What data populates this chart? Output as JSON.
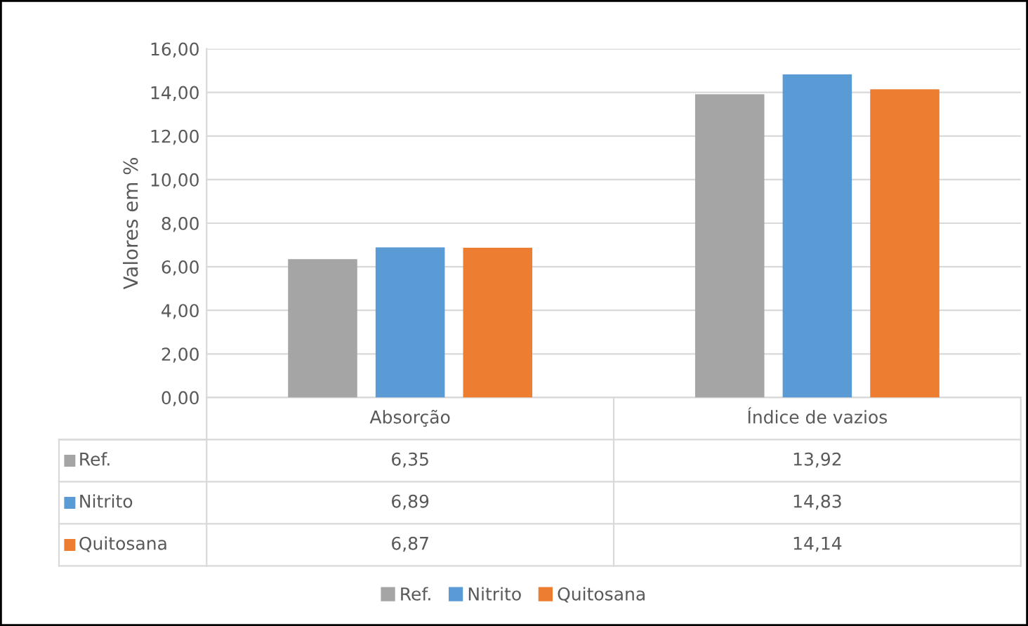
{
  "chart_data": {
    "type": "bar",
    "ylabel": "Valores em %",
    "categories": [
      "Absorção",
      "Índice de vazios"
    ],
    "series": [
      {
        "name": "Ref.",
        "color": "#a5a5a5",
        "values": [
          6.35,
          13.92
        ],
        "value_labels": [
          "6,35",
          "13,92"
        ]
      },
      {
        "name": "Nitrito",
        "color": "#5b9bd5",
        "values": [
          6.89,
          14.83
        ],
        "value_labels": [
          "6,89",
          "14,83"
        ]
      },
      {
        "name": "Quitosana",
        "color": "#ed7d31",
        "values": [
          6.87,
          14.14
        ],
        "value_labels": [
          "6,87",
          "14,14"
        ]
      }
    ],
    "ylim": [
      0,
      16
    ],
    "yticks": [
      {
        "value": 0,
        "label": "0,00"
      },
      {
        "value": 2,
        "label": "2,00"
      },
      {
        "value": 4,
        "label": "4,00"
      },
      {
        "value": 6,
        "label": "6,00"
      },
      {
        "value": 8,
        "label": "8,00"
      },
      {
        "value": 10,
        "label": "10,00"
      },
      {
        "value": 12,
        "label": "12,00"
      },
      {
        "value": 14,
        "label": "14,00"
      },
      {
        "value": 16,
        "label": "16,00"
      }
    ],
    "grid": "y",
    "legend": "bottom"
  }
}
